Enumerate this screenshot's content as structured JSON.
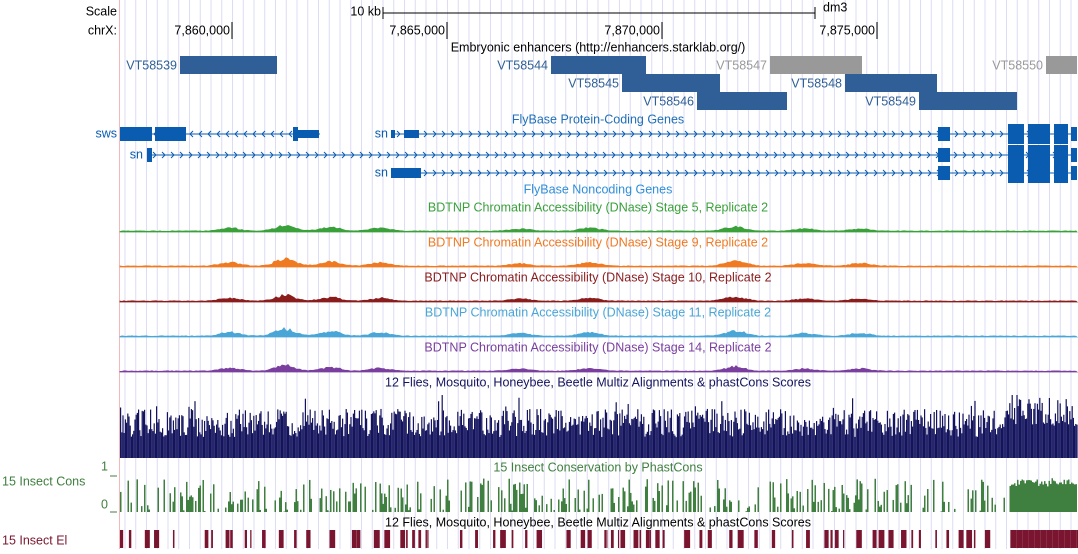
{
  "scale": {
    "label": "Scale",
    "bar_label": "10 kb",
    "assembly": "dm3"
  },
  "ruler": {
    "chrom": "chrX:",
    "ticks": [
      "7,860,000",
      "7,865,000",
      "7,870,000",
      "7,875,000"
    ]
  },
  "enhancers": {
    "title": "Embryonic enhancers (http://enhancers.starklab.org/)",
    "items": [
      "VT58539",
      "VT58544",
      "VT58547",
      "VT58550",
      "VT58545",
      "VT58548",
      "VT58546",
      "VT58549"
    ]
  },
  "coding_genes": {
    "title": "FlyBase Protein-Coding Genes",
    "labels": [
      "sws",
      "sn",
      "sn",
      "sn"
    ]
  },
  "noncoding_genes": {
    "title": "FlyBase Noncoding Genes"
  },
  "dnase_tracks": [
    {
      "title": "BDTNP Chromatin Accessibility (DNase) Stage 5, Replicate 2",
      "color": "#3aa13a"
    },
    {
      "title": "BDTNP Chromatin Accessibility (DNase) Stage 9, Replicate 2",
      "color": "#f07a22"
    },
    {
      "title": "BDTNP Chromatin Accessibility (DNase) Stage 10, Replicate 2",
      "color": "#8a1c1c"
    },
    {
      "title": "BDTNP Chromatin Accessibility (DNase) Stage 11, Replicate 2",
      "color": "#4aa6d6"
    },
    {
      "title": "BDTNP Chromatin Accessibility (DNase) Stage 14, Replicate 2",
      "color": "#7a3f9e"
    }
  ],
  "multiz": {
    "title": "12 Flies, Mosquito, Honeybee, Beetle Multiz Alignments & phastCons Scores",
    "color": "#14145e"
  },
  "conservation": {
    "title": "15 Insect Conservation by PhastCons",
    "side_label": "15 Insect Cons",
    "yticks": [
      1,
      0
    ],
    "color": "#3f7f3f"
  },
  "elements": {
    "title": "12 Flies, Mosquito, Honeybee, Beetle Multiz Alignments & phastCons Scores",
    "side_label": "15 Insect El",
    "color": "#7a1530"
  }
}
